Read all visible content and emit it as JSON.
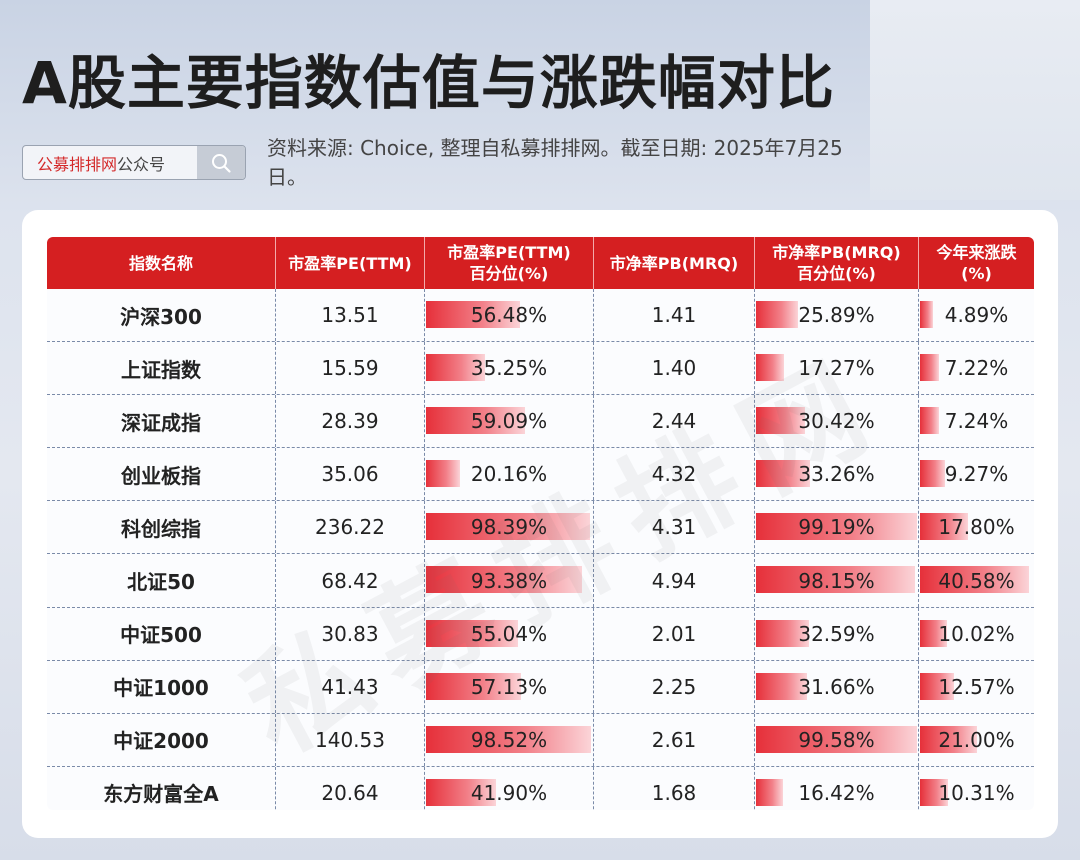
{
  "title": "A股主要指数估值与涨跌幅对比",
  "search": {
    "brand": "公募排排网",
    "suffix": "公众号"
  },
  "source_text": "资料来源: Choice, 整理自私募排排网。截至日期: 2025年7月25日。",
  "watermark": "私募排排网",
  "table": {
    "headers": [
      "指数名称",
      "市盈率PE(TTM)",
      "市盈率PE(TTM)\n百分位(%)",
      "市净率PB(MRQ)",
      "市净率PB(MRQ)\n百分位(%)",
      "今年来涨跌\n(%)"
    ],
    "rows": [
      {
        "name": "沪深300",
        "pe": "13.51",
        "pe_pct": "56.48%",
        "pe_pct_v": 56.48,
        "pb": "1.41",
        "pb_pct": "25.89%",
        "pb_pct_v": 25.89,
        "ytd": "4.89%",
        "ytd_v": 4.89
      },
      {
        "name": "上证指数",
        "pe": "15.59",
        "pe_pct": "35.25%",
        "pe_pct_v": 35.25,
        "pb": "1.40",
        "pb_pct": "17.27%",
        "pb_pct_v": 17.27,
        "ytd": "7.22%",
        "ytd_v": 7.22
      },
      {
        "name": "深证成指",
        "pe": "28.39",
        "pe_pct": "59.09%",
        "pe_pct_v": 59.09,
        "pb": "2.44",
        "pb_pct": "30.42%",
        "pb_pct_v": 30.42,
        "ytd": "7.24%",
        "ytd_v": 7.24
      },
      {
        "name": "创业板指",
        "pe": "35.06",
        "pe_pct": "20.16%",
        "pe_pct_v": 20.16,
        "pb": "4.32",
        "pb_pct": "33.26%",
        "pb_pct_v": 33.26,
        "ytd": "9.27%",
        "ytd_v": 9.27
      },
      {
        "name": "科创综指",
        "pe": "236.22",
        "pe_pct": "98.39%",
        "pe_pct_v": 98.39,
        "pb": "4.31",
        "pb_pct": "99.19%",
        "pb_pct_v": 99.19,
        "ytd": "17.80%",
        "ytd_v": 17.8
      },
      {
        "name": "北证50",
        "pe": "68.42",
        "pe_pct": "93.38%",
        "pe_pct_v": 93.38,
        "pb": "4.94",
        "pb_pct": "98.15%",
        "pb_pct_v": 98.15,
        "ytd": "40.58%",
        "ytd_v": 40.58
      },
      {
        "name": "中证500",
        "pe": "30.83",
        "pe_pct": "55.04%",
        "pe_pct_v": 55.04,
        "pb": "2.01",
        "pb_pct": "32.59%",
        "pb_pct_v": 32.59,
        "ytd": "10.02%",
        "ytd_v": 10.02
      },
      {
        "name": "中证1000",
        "pe": "41.43",
        "pe_pct": "57.13%",
        "pe_pct_v": 57.13,
        "pb": "2.25",
        "pb_pct": "31.66%",
        "pb_pct_v": 31.66,
        "ytd": "12.57%",
        "ytd_v": 12.57
      },
      {
        "name": "中证2000",
        "pe": "140.53",
        "pe_pct": "98.52%",
        "pe_pct_v": 98.52,
        "pb": "2.61",
        "pb_pct": "99.58%",
        "pb_pct_v": 99.58,
        "ytd": "21.00%",
        "ytd_v": 21.0
      },
      {
        "name": "东方财富全A",
        "pe": "20.64",
        "pe_pct": "41.90%",
        "pe_pct_v": 41.9,
        "pb": "1.68",
        "pb_pct": "16.42%",
        "pb_pct_v": 16.42,
        "ytd": "10.31%",
        "ytd_v": 10.31
      }
    ]
  },
  "colors": {
    "header_red": "#d51f21",
    "bar_red": "#e6303a",
    "brand_red": "#d42a2a"
  }
}
